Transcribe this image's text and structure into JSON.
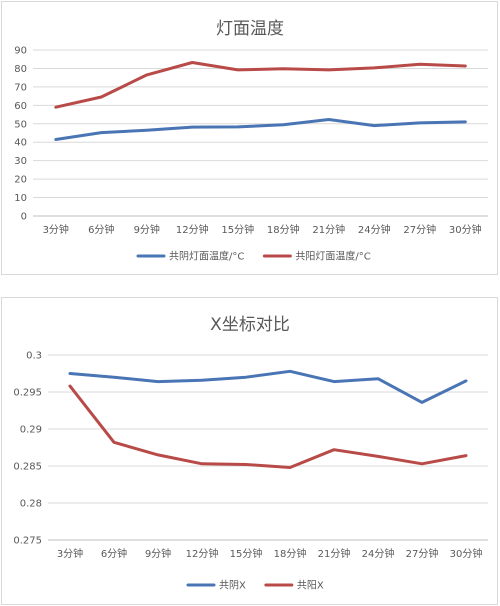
{
  "chart_data": [
    {
      "type": "line",
      "title": "灯面温度",
      "categories": [
        "3分钟",
        "6分钟",
        "9分钟",
        "12分钟",
        "15分钟",
        "18分钟",
        "21分钟",
        "24分钟",
        "27分钟",
        "30分钟"
      ],
      "ylim": [
        0,
        90
      ],
      "yticks": [
        "0",
        "10",
        "20",
        "30",
        "40",
        "50",
        "60",
        "70",
        "80",
        "90"
      ],
      "grid": true,
      "legend": "bottom",
      "series": [
        {
          "name": "共阴灯面温度/°C",
          "color": "#4a75b5",
          "values": [
            41.5,
            45.2,
            46.5,
            48.2,
            48.3,
            49.5,
            52.3,
            49.0,
            50.5,
            51.0
          ]
        },
        {
          "name": "共阳灯面温度/°C",
          "color": "#b84a48",
          "values": [
            59.0,
            64.5,
            76.5,
            83.2,
            79.2,
            79.8,
            79.2,
            80.3,
            82.3,
            81.3
          ]
        }
      ]
    },
    {
      "type": "line",
      "title": "X坐标对比",
      "categories": [
        "3分钟",
        "6分钟",
        "9分钟",
        "12分钟",
        "15分钟",
        "18分钟",
        "21分钟",
        "24分钟",
        "27分钟",
        "30分钟"
      ],
      "ylim": [
        0.275,
        0.3
      ],
      "yticks": [
        "0.275",
        "0.28",
        "0.285",
        "0.29",
        "0.295",
        "0.3"
      ],
      "grid": true,
      "legend": "bottom",
      "series": [
        {
          "name": "共阴X",
          "color": "#4a75b5",
          "values": [
            0.2975,
            0.297,
            0.2964,
            0.2966,
            0.297,
            0.2978,
            0.2964,
            0.2968,
            0.2936,
            0.2965
          ]
        },
        {
          "name": "共阳X",
          "color": "#b84a48",
          "values": [
            0.2958,
            0.2882,
            0.2865,
            0.2853,
            0.2852,
            0.2848,
            0.2872,
            0.2863,
            0.2853,
            0.2864
          ]
        }
      ]
    }
  ]
}
